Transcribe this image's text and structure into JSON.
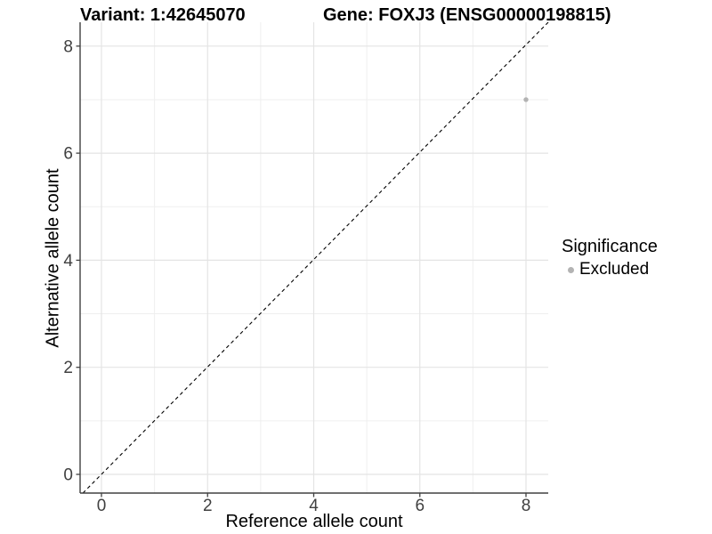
{
  "chart_data": {
    "type": "scatter",
    "title_left": "Variant: 1:42645070",
    "title_right": "Gene: FOXJ3 (ENSG00000198815)",
    "xlabel": "Reference allele count",
    "ylabel": "Alternative allele count",
    "x_ticks": [
      0,
      2,
      4,
      6,
      8
    ],
    "y_ticks": [
      0,
      2,
      4,
      6,
      8
    ],
    "xlim": [
      -0.42,
      8.45
    ],
    "ylim": [
      -0.35,
      8.45
    ],
    "gridlines": {
      "major": [
        0,
        2,
        4,
        6,
        8
      ],
      "minor": [
        1,
        3,
        5,
        7
      ],
      "grid_on": true
    },
    "points": [
      {
        "x": 8,
        "y": 7,
        "series": "Excluded"
      }
    ],
    "abline": {
      "slope": 1,
      "intercept": 0,
      "style": "dashed",
      "color": "#000000"
    },
    "legend": {
      "title": "Significance",
      "position": "right",
      "entries": [
        {
          "label": "Excluded",
          "color": "#b3b3b3"
        }
      ]
    },
    "colors": {
      "point": "#b3b3b3",
      "grid_major": "#e4e4e4",
      "grid_minor": "#efefef",
      "axis_line": "#404040",
      "tick_text": "#404040",
      "text": "#000000",
      "background": "#ffffff"
    }
  }
}
